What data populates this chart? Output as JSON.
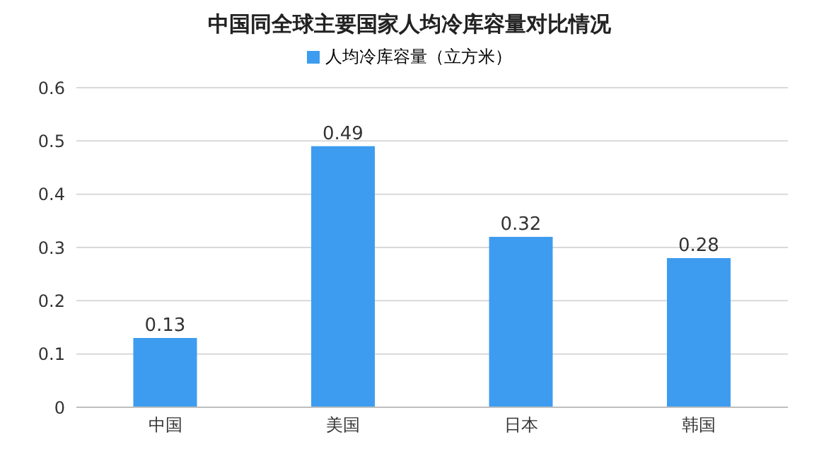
{
  "chart_data": {
    "type": "bar",
    "title": "中国同全球主要国家人均冷库容量对比情况",
    "categories": [
      "中国",
      "美国",
      "日本",
      "韩国"
    ],
    "series": [
      {
        "name": "人均冷库容量（立方米）",
        "color": "#3d9cf0",
        "values": [
          0.13,
          0.49,
          0.32,
          0.28
        ]
      }
    ],
    "ylim": [
      0,
      0.6
    ],
    "yticks": [
      0,
      0.1,
      0.2,
      0.3,
      0.4,
      0.5,
      0.6
    ],
    "grid": "y",
    "legend": "top",
    "data_labels": true
  }
}
